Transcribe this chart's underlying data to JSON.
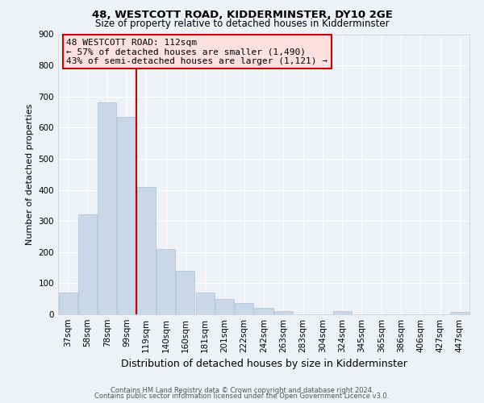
{
  "title1": "48, WESTCOTT ROAD, KIDDERMINSTER, DY10 2GE",
  "title2": "Size of property relative to detached houses in Kidderminster",
  "xlabel": "Distribution of detached houses by size in Kidderminster",
  "ylabel": "Number of detached properties",
  "categories": [
    "37sqm",
    "58sqm",
    "78sqm",
    "99sqm",
    "119sqm",
    "140sqm",
    "160sqm",
    "181sqm",
    "201sqm",
    "222sqm",
    "242sqm",
    "263sqm",
    "283sqm",
    "304sqm",
    "324sqm",
    "345sqm",
    "365sqm",
    "386sqm",
    "406sqm",
    "427sqm",
    "447sqm"
  ],
  "values": [
    70,
    320,
    680,
    635,
    410,
    210,
    140,
    70,
    48,
    37,
    22,
    10,
    0,
    0,
    10,
    0,
    0,
    0,
    0,
    0,
    7
  ],
  "bar_color": "#c8d8e8",
  "bar_edge_color": "#a8c0d8",
  "vline_color": "#cc0000",
  "annotation_title": "48 WESTCOTT ROAD: 112sqm",
  "annotation_line1": "← 57% of detached houses are smaller (1,490)",
  "annotation_line2": "43% of semi-detached houses are larger (1,121) →",
  "annotation_box_facecolor": "#ffe0e0",
  "annotation_box_edgecolor": "#cc0000",
  "ylim": [
    0,
    900
  ],
  "yticks": [
    0,
    100,
    200,
    300,
    400,
    500,
    600,
    700,
    800,
    900
  ],
  "footer1": "Contains HM Land Registry data © Crown copyright and database right 2024.",
  "footer2": "Contains public sector information licensed under the Open Government Licence v3.0.",
  "background_color": "#eef2f7",
  "grid_color": "#ffffff",
  "title1_fontsize": 9.5,
  "title2_fontsize": 8.5,
  "ylabel_fontsize": 8,
  "xlabel_fontsize": 9,
  "tick_fontsize": 7.5,
  "annot_fontsize": 8,
  "footer_fontsize": 6
}
